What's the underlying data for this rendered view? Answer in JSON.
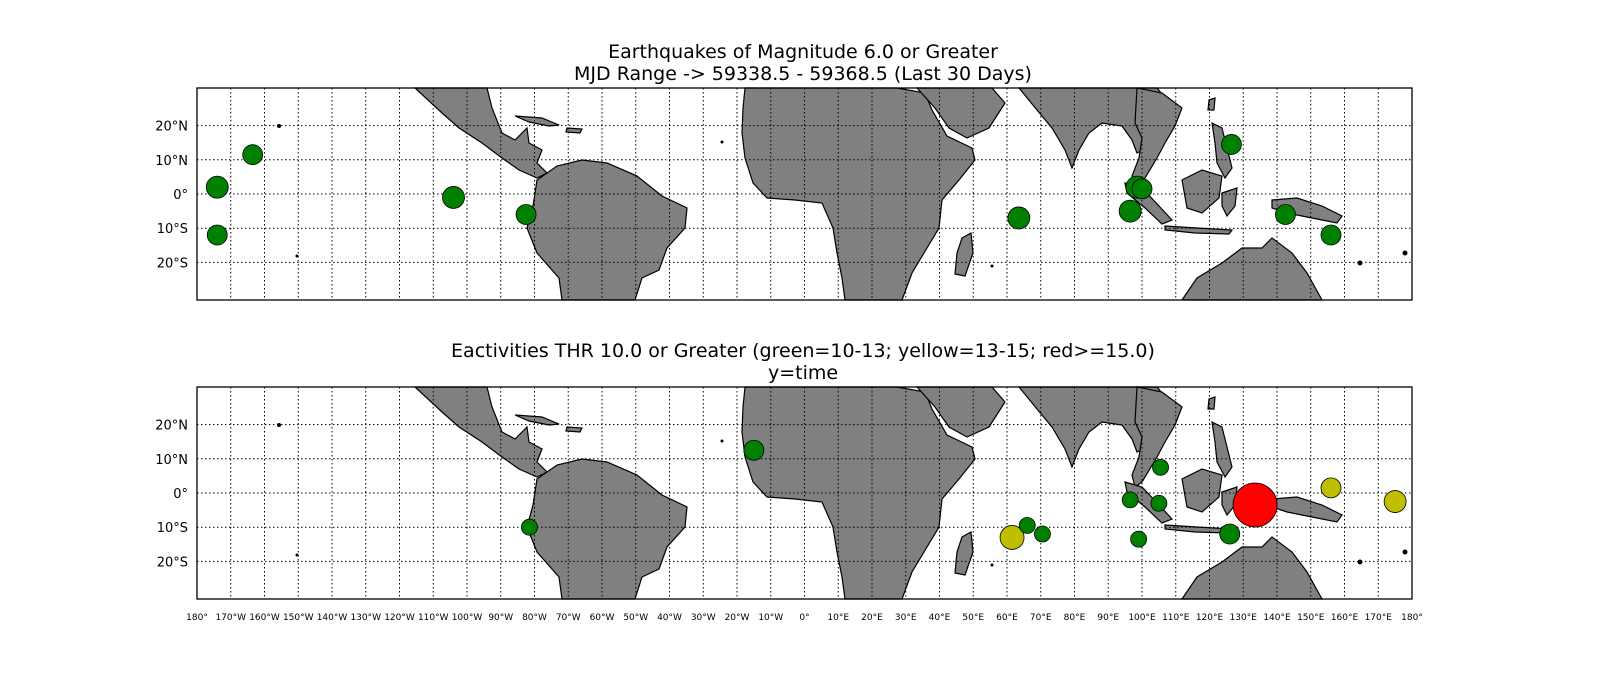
{
  "panels": {
    "top": {
      "title_line1": "Earthquakes of Magnitude 6.0 or Greater",
      "title_line2": "MJD Range -> 59338.5 - 59368.5 (Last 30 Days)"
    },
    "bottom": {
      "title_line1": "Eactivities THR 10.0 or Greater (green=10-13; yellow=13-15; red>=15.0)",
      "title_line2": "y=time"
    }
  },
  "lat_labels": [
    "20°N",
    "10°N",
    "0°",
    "10°S",
    "20°S"
  ],
  "lon_labels": [
    "180°",
    "170°W",
    "160°W",
    "150°W",
    "140°W",
    "130°W",
    "120°W",
    "110°W",
    "100°W",
    "90°W",
    "80°W",
    "70°W",
    "60°W",
    "50°W",
    "40°W",
    "30°W",
    "20°W",
    "10°W",
    "0°",
    "10°E",
    "20°E",
    "30°E",
    "40°E",
    "50°E",
    "60°E",
    "70°E",
    "80°E",
    "90°E",
    "100°E",
    "110°E",
    "120°E",
    "130°E",
    "140°E",
    "150°E",
    "160°E",
    "170°E",
    "180°"
  ],
  "colors": {
    "green": "#008000",
    "yellow": "#bfbf00",
    "red": "#ff0000",
    "land": "#808080"
  },
  "earthquakes": [
    {
      "lon": -174,
      "lat": 2,
      "size": 11
    },
    {
      "lon": -174,
      "lat": -12,
      "size": 10
    },
    {
      "lon": -163.5,
      "lat": 11.5,
      "size": 10
    },
    {
      "lon": -104,
      "lat": -1,
      "size": 11
    },
    {
      "lon": -82.5,
      "lat": -6,
      "size": 10
    },
    {
      "lon": 63.5,
      "lat": -7,
      "size": 11
    },
    {
      "lon": 96.5,
      "lat": -5,
      "size": 11
    },
    {
      "lon": 98.5,
      "lat": 2,
      "size": 11
    },
    {
      "lon": 100,
      "lat": 1.5,
      "size": 10
    },
    {
      "lon": 126.5,
      "lat": 14.5,
      "size": 10
    },
    {
      "lon": 142.5,
      "lat": -6,
      "size": 10
    },
    {
      "lon": 156,
      "lat": -12,
      "size": 10
    }
  ],
  "eactivities": [
    {
      "lon": -15,
      "lat": 12.5,
      "level": "green",
      "size": 10
    },
    {
      "lon": -81.5,
      "lat": -10,
      "level": "green",
      "size": 8
    },
    {
      "lon": 61.5,
      "lat": -13,
      "level": "yellow",
      "size": 12
    },
    {
      "lon": 66,
      "lat": -9.5,
      "level": "green",
      "size": 8
    },
    {
      "lon": 70.5,
      "lat": -12,
      "level": "green",
      "size": 8
    },
    {
      "lon": 96.5,
      "lat": -2,
      "level": "green",
      "size": 8
    },
    {
      "lon": 99,
      "lat": -13.5,
      "level": "green",
      "size": 8
    },
    {
      "lon": 105,
      "lat": -3,
      "level": "green",
      "size": 8
    },
    {
      "lon": 105.5,
      "lat": 7.5,
      "level": "green",
      "size": 8
    },
    {
      "lon": 126,
      "lat": -12,
      "level": "green",
      "size": 10
    },
    {
      "lon": 133.5,
      "lat": -3.5,
      "level": "red",
      "size": 22
    },
    {
      "lon": 156,
      "lat": 1.5,
      "level": "yellow",
      "size": 10
    },
    {
      "lon": 175,
      "lat": -2.5,
      "level": "yellow",
      "size": 11
    }
  ]
}
